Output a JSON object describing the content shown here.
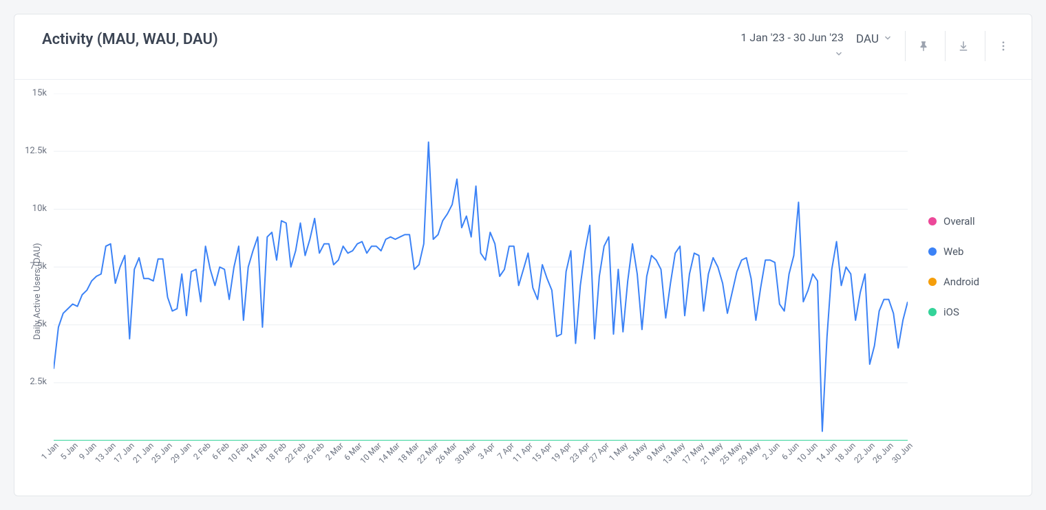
{
  "header": {
    "title": "Activity (MAU, WAU, DAU)",
    "date_range": "1 Jan '23 - 30 Jun '23",
    "metric_selected": "DAU"
  },
  "chart": {
    "type": "line",
    "y_axis_title": "Daily Active Users (DAU)",
    "ylim": [
      0,
      15000
    ],
    "y_ticks": [
      {
        "v": 15000,
        "label": "15k"
      },
      {
        "v": 12500,
        "label": "12.5k"
      },
      {
        "v": 10000,
        "label": "10k"
      },
      {
        "v": 7500,
        "label": "7.5k"
      },
      {
        "v": 5000,
        "label": "5k"
      },
      {
        "v": 2500,
        "label": "2.5k"
      }
    ],
    "grid_color": "#eceff3",
    "background_color": "#ffffff",
    "line_width": 2,
    "series": [
      {
        "name": "Overall",
        "color": "#ec4899",
        "values": null
      },
      {
        "name": "Web",
        "color": "#3b82f6",
        "values": [
          3100,
          4900,
          5500,
          5700,
          5900,
          5800,
          6300,
          6500,
          6900,
          7100,
          7200,
          8400,
          8500,
          6800,
          7500,
          8000,
          4400,
          7400,
          7900,
          7000,
          7000,
          6900,
          7850,
          7850,
          6200,
          5600,
          5700,
          7200,
          5400,
          7300,
          7400,
          6000,
          8400,
          7400,
          6700,
          7500,
          7400,
          6100,
          7500,
          8400,
          5200,
          7500,
          8200,
          8800,
          4900,
          8800,
          9000,
          7800,
          9500,
          9400,
          7500,
          8200,
          9400,
          8000,
          8700,
          9600,
          8100,
          8500,
          8500,
          7600,
          7800,
          8400,
          8100,
          8200,
          8500,
          8600,
          8100,
          8400,
          8400,
          8200,
          8700,
          8800,
          8700,
          8800,
          8900,
          8900,
          7400,
          7600,
          8500,
          12900,
          8700,
          8900,
          9500,
          9800,
          10200,
          11300,
          9200,
          9700,
          8800,
          11000,
          8100,
          7800,
          9000,
          8500,
          7100,
          7400,
          8400,
          8400,
          6700,
          7400,
          8100,
          6600,
          6100,
          7600,
          7000,
          6500,
          4500,
          4600,
          7300,
          8200,
          4200,
          6700,
          8200,
          9300,
          4400,
          7100,
          8400,
          8800,
          4600,
          7400,
          4700,
          6900,
          8500,
          7200,
          4800,
          7100,
          8000,
          7800,
          7400,
          5300,
          6800,
          8100,
          8400,
          5400,
          7200,
          8100,
          8000,
          5600,
          7200,
          7900,
          7500,
          6800,
          5500,
          6400,
          7300,
          7800,
          7900,
          7000,
          5200,
          6600,
          7800,
          7800,
          7700,
          5900,
          5600,
          7200,
          8000,
          10300,
          6000,
          6500,
          7200,
          6900,
          400,
          4500,
          7400,
          8600,
          6700,
          7500,
          7200,
          5200,
          6400,
          7200,
          3300,
          4100,
          5600,
          6100,
          6100,
          5500,
          4000,
          5200,
          6000
        ]
      },
      {
        "name": "Android",
        "color": "#f59e0b",
        "values": null
      },
      {
        "name": "iOS",
        "color": "#34d399",
        "baseline": 0
      }
    ],
    "x_labels": [
      "1 Jan",
      "5 Jan",
      "9 Jan",
      "13 Jan",
      "17 Jan",
      "21 Jan",
      "25 Jan",
      "29 Jan",
      "2 Feb",
      "6 Feb",
      "10 Feb",
      "14 Feb",
      "18 Feb",
      "22 Feb",
      "26 Feb",
      "2 Mar",
      "6 Mar",
      "10 Mar",
      "14 Mar",
      "18 Mar",
      "22 Mar",
      "26 Mar",
      "30 Mar",
      "3 Apr",
      "7 Apr",
      "11 Apr",
      "15 Apr",
      "19 Apr",
      "23 Apr",
      "27 Apr",
      "1 May",
      "5 May",
      "9 May",
      "13 May",
      "17 May",
      "21 May",
      "25 May",
      "29 May",
      "2 Jun",
      "6 Jun",
      "10 Jun",
      "14 Jun",
      "18 Jun",
      "22 Jun",
      "26 Jun",
      "30 Jun"
    ],
    "x_tick_indices": [
      0,
      4,
      8,
      12,
      16,
      20,
      24,
      28,
      32,
      36,
      40,
      44,
      48,
      52,
      56,
      60,
      64,
      68,
      72,
      76,
      80,
      84,
      88,
      92,
      96,
      100,
      104,
      108,
      112,
      116,
      120,
      124,
      128,
      132,
      136,
      140,
      144,
      148,
      152,
      156,
      160,
      164,
      168,
      172,
      176,
      180
    ],
    "x_count": 181,
    "label_fontsize": 13,
    "tick_fontsize": 12
  },
  "legend": {
    "items": [
      "Overall",
      "Web",
      "Android",
      "iOS"
    ]
  }
}
